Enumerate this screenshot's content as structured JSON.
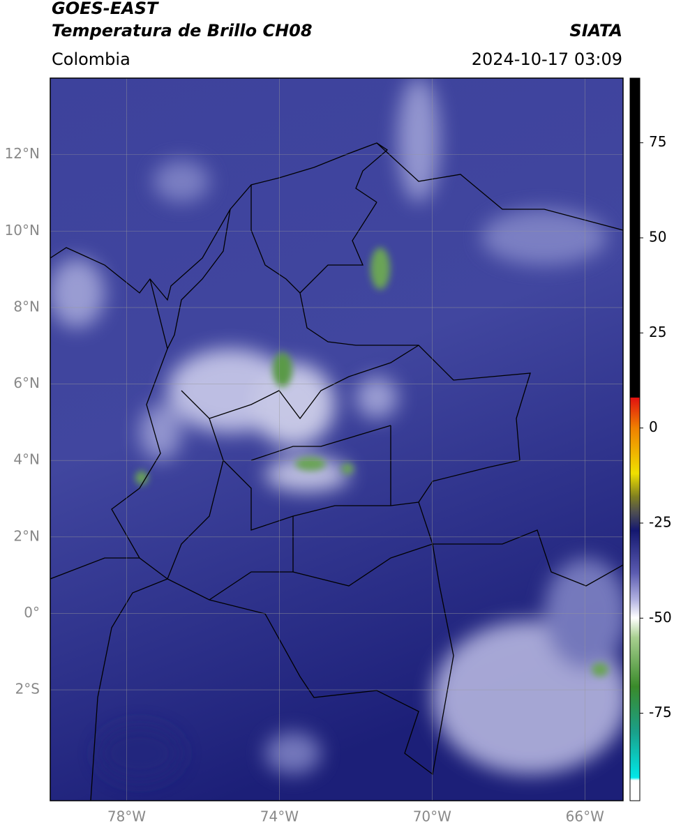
{
  "header": {
    "title": "GOES-EAST",
    "subtitle": "Temperatura de Brillo CH08",
    "region": "Colombia",
    "source": "SIATA",
    "timestamp": "2024-10-17 03:09"
  },
  "map": {
    "lonlim": [
      -80,
      -65
    ],
    "latlim": [
      -4.9,
      14
    ],
    "lonticks": [
      {
        "value": -78,
        "label": "78°W"
      },
      {
        "value": -74,
        "label": "74°W"
      },
      {
        "value": -70,
        "label": "70°W"
      },
      {
        "value": -66,
        "label": "66°W"
      }
    ],
    "latticks": [
      {
        "value": 12,
        "label": "12°N"
      },
      {
        "value": 10,
        "label": "10°N"
      },
      {
        "value": 8,
        "label": "8°N"
      },
      {
        "value": 6,
        "label": "6°N"
      },
      {
        "value": 4,
        "label": "4°N"
      },
      {
        "value": 2,
        "label": "2°N"
      },
      {
        "value": 0,
        "label": "0°"
      },
      {
        "value": -2,
        "label": "2°S"
      }
    ],
    "grid": true
  },
  "colorbar": {
    "lim": [
      -98,
      92
    ],
    "ticks": [
      75,
      50,
      25,
      0,
      -25,
      -50,
      -75
    ]
  }
}
